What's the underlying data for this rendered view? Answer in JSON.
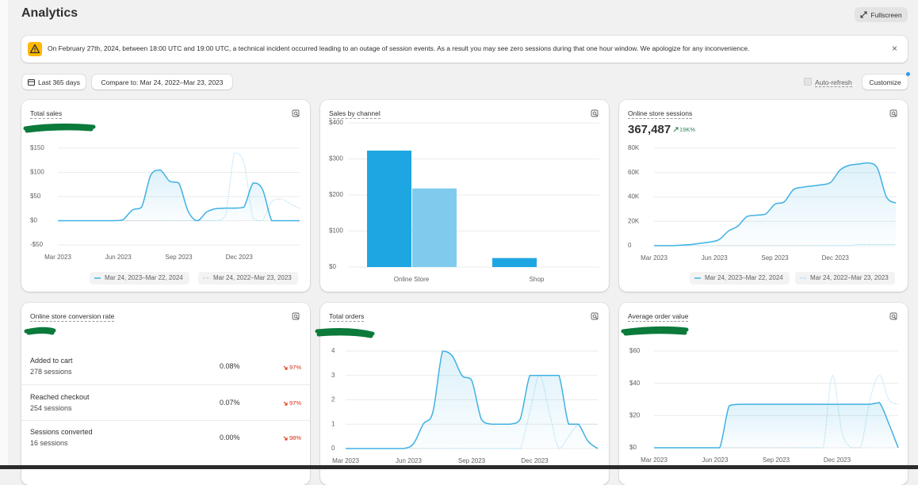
{
  "header": {
    "title": "Analytics",
    "fullscreen_button": "Fullscreen"
  },
  "banner": {
    "message": "On February 27th, 2024, between 18:00 UTC and 19:00 UTC, a technical incident occurred leading to an outage of session events. As a result you may see zero sessions during that one hour window. We apologize for any inconvenience.",
    "close": "×"
  },
  "toolbar": {
    "date_range": "Last 365 days",
    "compare": "Compare to: Mar 24, 2022–Mar 23, 2023",
    "auto_refresh": "Auto-refresh",
    "customize": "Customize"
  },
  "cards": [
    {
      "title": "Total sales",
      "chart_data": {
        "type": "line",
        "xlim": [
          0,
          26
        ],
        "ylim": [
          -50,
          150
        ],
        "yticks": [
          {
            "value": -50,
            "label": "-$50"
          },
          {
            "value": 0,
            "label": "$0"
          },
          {
            "value": 50,
            "label": "$50"
          },
          {
            "value": 100,
            "label": "$100"
          },
          {
            "value": 150,
            "label": "$150"
          }
        ],
        "xticks": [
          {
            "value": 0,
            "label": "Mar 2023"
          },
          {
            "value": 6.5,
            "label": "Jun 2023"
          },
          {
            "value": 13,
            "label": "Sep 2023"
          },
          {
            "value": 19.5,
            "label": "Dec 2023"
          }
        ],
        "grid": true,
        "series": [
          {
            "name": "Mar 24, 2023–Mar 22, 2024",
            "color": "#3fb1e3",
            "style": "solid",
            "area": true,
            "values": [
              0,
              0,
              0,
              0,
              0,
              0,
              0,
              2,
              22,
              28,
              95,
              105,
              82,
              78,
              20,
              0,
              18,
              25,
              26,
              26,
              28,
              78,
              65,
              0,
              0,
              0,
              0
            ]
          },
          {
            "name": "Mar 24, 2022–Mar 23, 2023",
            "color": "#8dd0ee",
            "style": "dotted",
            "area": false,
            "values": [
              0,
              0,
              0,
              0,
              0,
              0,
              0,
              0,
              0,
              0,
              0,
              0,
              0,
              0,
              0,
              0,
              0,
              0,
              10,
              140,
              120,
              5,
              0,
              40,
              45,
              35,
              25
            ]
          }
        ]
      }
    },
    {
      "title": "Sales by channel",
      "chart_data": {
        "type": "bar",
        "ylim": [
          0,
          400
        ],
        "yticks": [
          {
            "value": 0,
            "label": "$0"
          },
          {
            "value": 100,
            "label": "$100"
          },
          {
            "value": 200,
            "label": "$200"
          },
          {
            "value": 300,
            "label": "$300"
          },
          {
            "value": 400,
            "label": "$400"
          }
        ],
        "grid": true,
        "categories": [
          "Online Store",
          "Shop"
        ],
        "series": [
          {
            "color": "#1ea6e2",
            "values": [
              323,
              25
            ]
          },
          {
            "color": "#7fcbee",
            "values": [
              218,
              0
            ]
          }
        ]
      }
    },
    {
      "title": "Online store sessions",
      "value": "367,487",
      "change": "19K%",
      "chart_data": {
        "type": "line",
        "xlim": [
          0,
          26
        ],
        "ylim": [
          0,
          80000
        ],
        "yticks": [
          0,
          {
            "value": 20000,
            "label": "20K"
          },
          {
            "value": 40000,
            "label": "40K"
          },
          {
            "value": 60000,
            "label": "60K"
          },
          {
            "value": 80000,
            "label": "80K"
          }
        ],
        "xticks": [
          {
            "value": 0,
            "label": "Mar 2023"
          },
          {
            "value": 6.5,
            "label": "Jun 2023"
          },
          {
            "value": 13,
            "label": "Sep 2023"
          },
          {
            "value": 19.5,
            "label": "Dec 2023"
          }
        ],
        "grid": true,
        "series": [
          {
            "name": "Mar 24, 2023–Mar 22, 2024",
            "color": "#3fb1e3",
            "style": "solid",
            "area": true,
            "values": [
              0,
              0,
              0,
              500,
              1000,
              2000,
              3000,
              5000,
              12000,
              16000,
              24000,
              25000,
              26000,
              34000,
              36000,
              46000,
              48000,
              49000,
              50000,
              52000,
              62000,
              66000,
              67000,
              68000,
              64000,
              40000,
              35000
            ]
          },
          {
            "name": "Mar 24, 2022–Mar 23, 2023",
            "color": "#8dd0ee",
            "style": "dotted",
            "area": false,
            "values": [
              0,
              0,
              0,
              0,
              0,
              0,
              0,
              0,
              0,
              0,
              0,
              0,
              0,
              0,
              0,
              0,
              0,
              0,
              0,
              0,
              0,
              0,
              1000,
              1000,
              1000,
              1000,
              1000
            ]
          }
        ]
      }
    },
    {
      "title": "Online store conversion rate",
      "rows": [
        {
          "label": "Added to cart",
          "sessions": "278 sessions",
          "rate": "0.08%",
          "change": "97%"
        },
        {
          "label": "Reached checkout",
          "sessions": "254 sessions",
          "rate": "0.07%",
          "change": "97%"
        },
        {
          "label": "Sessions converted",
          "sessions": "16 sessions",
          "rate": "0.00%",
          "change": "98%"
        }
      ]
    },
    {
      "title": "Total orders",
      "chart_data": {
        "type": "line",
        "xlim": [
          0,
          26
        ],
        "ylim": [
          0,
          4
        ],
        "yticks": [
          0,
          1,
          2,
          3,
          4
        ],
        "xticks": [
          {
            "value": 0,
            "label": "Mar 2023"
          },
          {
            "value": 6.5,
            "label": "Jun 2023"
          },
          {
            "value": 13,
            "label": "Sep 2023"
          },
          {
            "value": 19.5,
            "label": "Dec 2023"
          }
        ],
        "grid": true,
        "series": [
          {
            "color": "#3fb1e3",
            "style": "solid",
            "area": true,
            "values": [
              0,
              0,
              0,
              0,
              0,
              0,
              0,
              0.2,
              1,
              1.5,
              4,
              3.8,
              3,
              2.8,
              1.2,
              1,
              1,
              1,
              1.2,
              3,
              3,
              3,
              3,
              1,
              1,
              0.3,
              0
            ]
          },
          {
            "color": "#8dd0ee",
            "style": "dotted",
            "area": false,
            "values": [
              0,
              0,
              0,
              0,
              0,
              0,
              0,
              0,
              0,
              0,
              0,
              0,
              0,
              0,
              0,
              0,
              0,
              0,
              0,
              1.5,
              3,
              1.5,
              0,
              0.5,
              1,
              1,
              1
            ]
          }
        ]
      }
    },
    {
      "title": "Average order value",
      "chart_data": {
        "type": "line",
        "xlim": [
          0,
          26
        ],
        "ylim": [
          0,
          60
        ],
        "yticks": [
          {
            "value": 0,
            "label": "$0"
          },
          {
            "value": 20,
            "label": "$20"
          },
          {
            "value": 40,
            "label": "$40"
          },
          {
            "value": 60,
            "label": "$60"
          }
        ],
        "xticks": [
          {
            "value": 0,
            "label": "Mar 2023"
          },
          {
            "value": 6.5,
            "label": "Jun 2023"
          },
          {
            "value": 13,
            "label": "Sep 2023"
          },
          {
            "value": 19.5,
            "label": "Dec 2023"
          }
        ],
        "grid": true,
        "series": [
          {
            "color": "#3fb1e3",
            "style": "solid",
            "area": true,
            "values": [
              0,
              0,
              0,
              0,
              0,
              0,
              0,
              0,
              26,
              27,
              27,
              27,
              27,
              27,
              27,
              27,
              27,
              27,
              27,
              27,
              27,
              27,
              27,
              27,
              28,
              15,
              0
            ]
          },
          {
            "color": "#8dd0ee",
            "style": "dotted",
            "area": false,
            "values": [
              0,
              0,
              0,
              0,
              0,
              0,
              0,
              0,
              0,
              0,
              0,
              0,
              0,
              0,
              0,
              0,
              0,
              0,
              0,
              45,
              10,
              0,
              0,
              30,
              45,
              30,
              27
            ]
          }
        ]
      }
    }
  ]
}
